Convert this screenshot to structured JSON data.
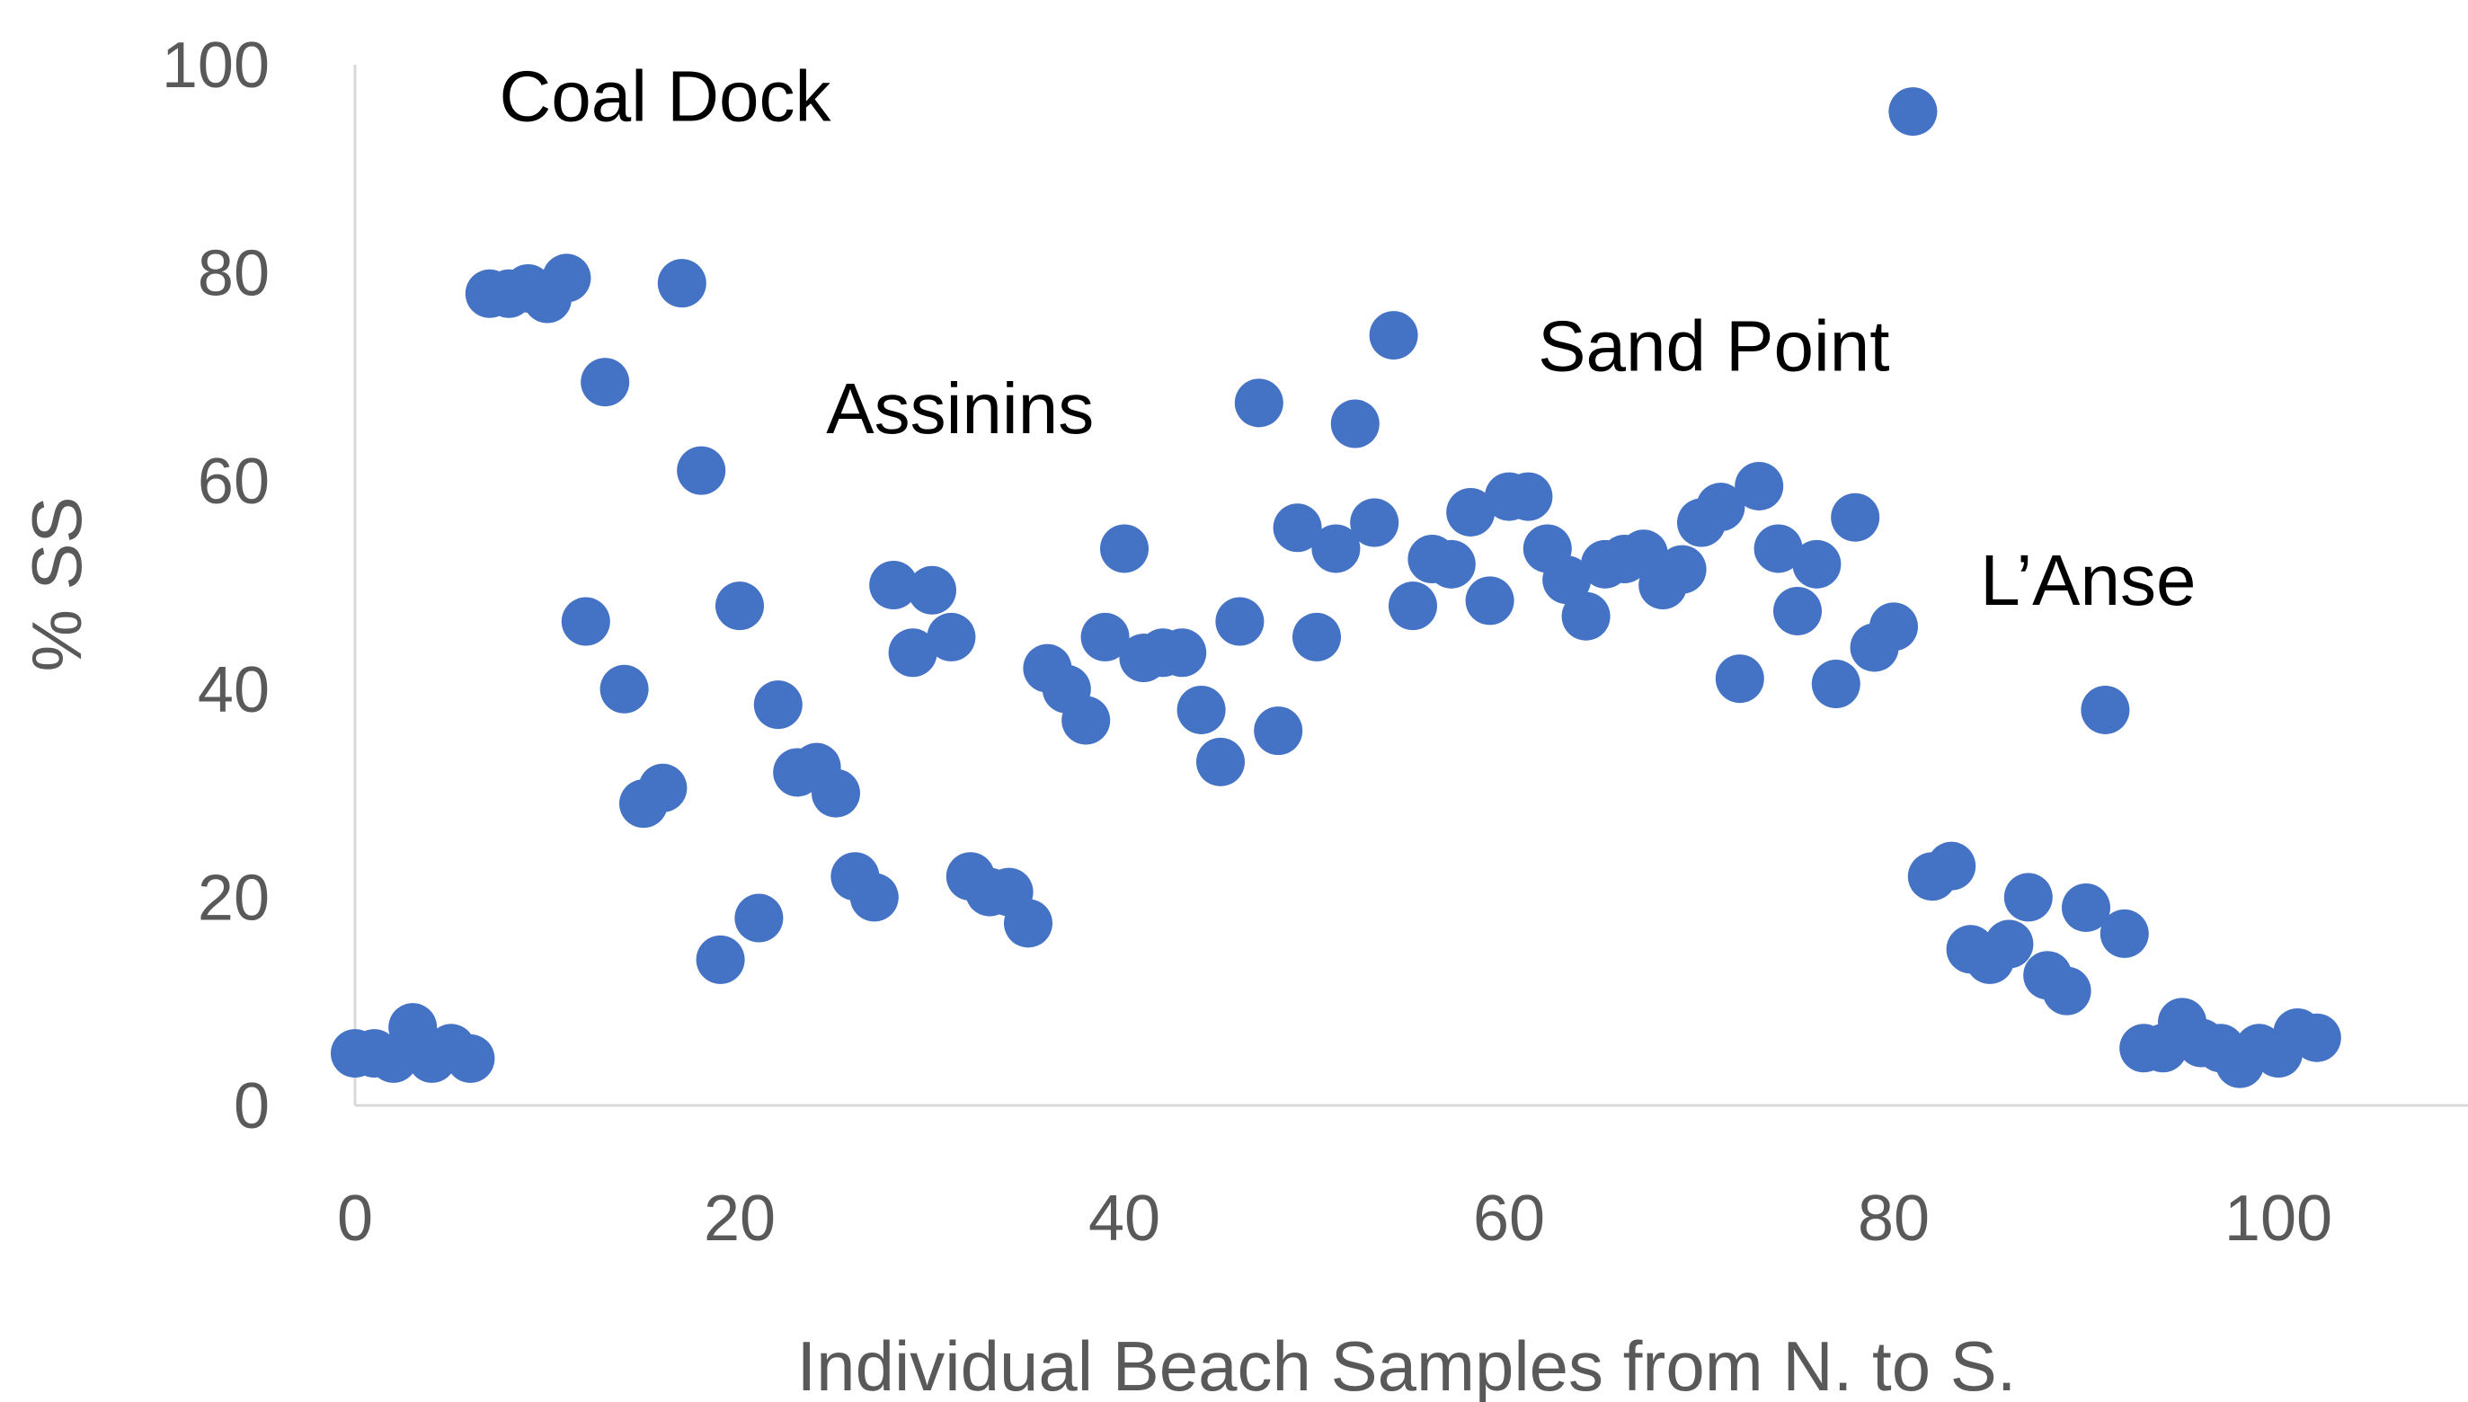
{
  "chart_data": {
    "type": "scatter",
    "title": "",
    "xlabel": "Individual Beach Samples from N. to S.",
    "ylabel": "% SS",
    "xlim": [
      0,
      106
    ],
    "ylim": [
      0,
      100
    ],
    "x_ticks": [
      0,
      20,
      40,
      60,
      80,
      100
    ],
    "y_ticks": [
      0,
      20,
      40,
      60,
      80,
      100
    ],
    "grid": false,
    "legend": "none",
    "marker_color": "#4472c4",
    "axis_color": "#d9d9d9",
    "text_color": "#595959",
    "series": [
      {
        "points": [
          [
            0,
            5
          ],
          [
            1,
            5
          ],
          [
            2,
            4.5
          ],
          [
            3,
            7.5
          ],
          [
            4,
            4.5
          ],
          [
            5,
            5.5
          ],
          [
            6,
            4.5
          ],
          [
            7,
            78
          ],
          [
            8,
            78
          ],
          [
            9,
            78.5
          ],
          [
            10,
            77.5
          ],
          [
            11,
            79.5
          ],
          [
            12,
            46.5
          ],
          [
            13,
            69.5
          ],
          [
            14,
            40
          ],
          [
            15,
            29
          ],
          [
            16,
            30.5
          ],
          [
            17,
            79
          ],
          [
            18,
            61
          ],
          [
            19,
            14
          ],
          [
            20,
            48
          ],
          [
            21,
            18
          ],
          [
            22,
            38.5
          ],
          [
            23,
            32
          ],
          [
            24,
            32.5
          ],
          [
            25,
            30
          ],
          [
            26,
            22
          ],
          [
            27,
            20
          ],
          [
            28,
            50
          ],
          [
            29,
            43.5
          ],
          [
            30,
            49.5
          ],
          [
            31,
            45
          ],
          [
            32,
            22
          ],
          [
            33,
            20.5
          ],
          [
            34,
            20.5
          ],
          [
            35,
            17.5
          ],
          [
            36,
            42
          ],
          [
            37,
            40
          ],
          [
            38,
            37
          ],
          [
            39,
            45
          ],
          [
            40,
            53.5
          ],
          [
            41,
            43
          ],
          [
            42,
            43.5
          ],
          [
            43,
            43.5
          ],
          [
            44,
            38
          ],
          [
            45,
            33
          ],
          [
            46,
            46.5
          ],
          [
            47,
            67.5
          ],
          [
            48,
            36
          ],
          [
            49,
            55.5
          ],
          [
            50,
            45
          ],
          [
            51,
            53.5
          ],
          [
            52,
            65.5
          ],
          [
            53,
            56
          ],
          [
            54,
            74
          ],
          [
            55,
            48
          ],
          [
            56,
            52.5
          ],
          [
            57,
            52
          ],
          [
            58,
            57
          ],
          [
            59,
            48.5
          ],
          [
            60,
            58.5
          ],
          [
            61,
            58.5
          ],
          [
            62,
            53.5
          ],
          [
            63,
            50.5
          ],
          [
            64,
            47
          ],
          [
            65,
            52
          ],
          [
            66,
            52.5
          ],
          [
            67,
            53
          ],
          [
            68,
            50
          ],
          [
            69,
            51.5
          ],
          [
            70,
            56
          ],
          [
            71,
            57.5
          ],
          [
            72,
            41
          ],
          [
            73,
            59.5
          ],
          [
            74,
            53.5
          ],
          [
            75,
            47.5
          ],
          [
            76,
            52
          ],
          [
            77,
            40.5
          ],
          [
            78,
            56.5
          ],
          [
            79,
            44
          ],
          [
            80,
            46
          ],
          [
            81,
            95.5
          ],
          [
            82,
            22
          ],
          [
            83,
            23
          ],
          [
            84,
            15
          ],
          [
            85,
            14
          ],
          [
            86,
            15.5
          ],
          [
            87,
            20
          ],
          [
            88,
            12.5
          ],
          [
            89,
            11
          ],
          [
            90,
            19
          ],
          [
            91,
            38
          ],
          [
            92,
            16.5
          ],
          [
            93,
            5.5
          ],
          [
            94,
            5.5
          ],
          [
            95,
            8
          ],
          [
            96,
            6
          ],
          [
            97,
            5.5
          ],
          [
            98,
            4
          ],
          [
            99,
            5.5
          ],
          [
            100,
            5
          ],
          [
            101,
            7
          ],
          [
            102,
            6.5
          ]
        ]
      }
    ],
    "annotations": [
      {
        "text": "Coal Dock",
        "x": 7.5,
        "y": 97
      },
      {
        "text": "Assinins",
        "x": 24.5,
        "y": 67
      },
      {
        "text": "Sand Point",
        "x": 61.5,
        "y": 73
      },
      {
        "text": "L’Anse",
        "x": 84.5,
        "y": 50.5
      }
    ]
  }
}
